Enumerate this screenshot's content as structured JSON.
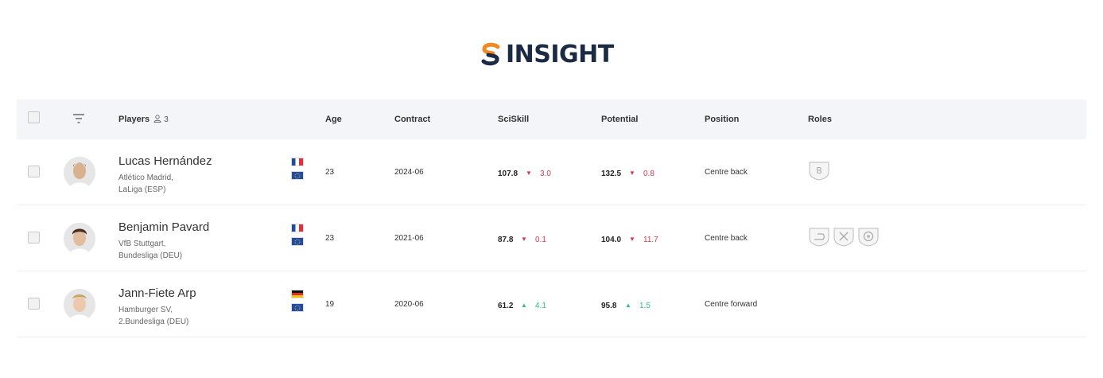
{
  "brand": {
    "logo_text": "INSIGHT"
  },
  "table": {
    "headers": {
      "players": "Players",
      "players_count": "3",
      "age": "Age",
      "contract": "Contract",
      "sciskill": "SciSkill",
      "potential": "Potential",
      "position": "Position",
      "roles": "Roles"
    },
    "rows": [
      {
        "name": "Lucas Hernández",
        "club": "Atlético Madrid,",
        "league": "LaLiga (ESP)",
        "age": "23",
        "contract": "2024-06",
        "sciskill": "107.8",
        "sciskill_change": "3.0",
        "sciskill_trend": "down",
        "potential": "132.5",
        "potential_change": "0.8",
        "potential_trend": "down",
        "position": "Centre back",
        "nationality_icon": "france-flag",
        "roles": [
          "ball-playing-defender"
        ]
      },
      {
        "name": "Benjamin Pavard",
        "club": "VfB Stuttgart,",
        "league": "Bundesliga (DEU)",
        "age": "23",
        "contract": "2021-06",
        "sciskill": "87.8",
        "sciskill_change": "0.1",
        "sciskill_trend": "down",
        "potential": "104.0",
        "potential_change": "11.7",
        "potential_trend": "down",
        "position": "Centre back",
        "nationality_icon": "france-flag",
        "roles": [
          "overlapping-role",
          "tactical-role",
          "ball-winner-role"
        ]
      },
      {
        "name": "Jann-Fiete Arp",
        "club": "Hamburger SV,",
        "league": "2.Bundesliga (DEU)",
        "age": "19",
        "contract": "2020-06",
        "sciskill": "61.2",
        "sciskill_change": "4.1",
        "sciskill_trend": "up",
        "potential": "95.8",
        "potential_change": "1.5",
        "potential_trend": "up",
        "position": "Centre forward",
        "nationality_icon": "germany-flag",
        "roles": []
      }
    ]
  },
  "colors": {
    "down": "#d9394f",
    "up": "#2ec27e",
    "brand_dark": "#1b2b44",
    "brand_orange": "#f08a24"
  }
}
